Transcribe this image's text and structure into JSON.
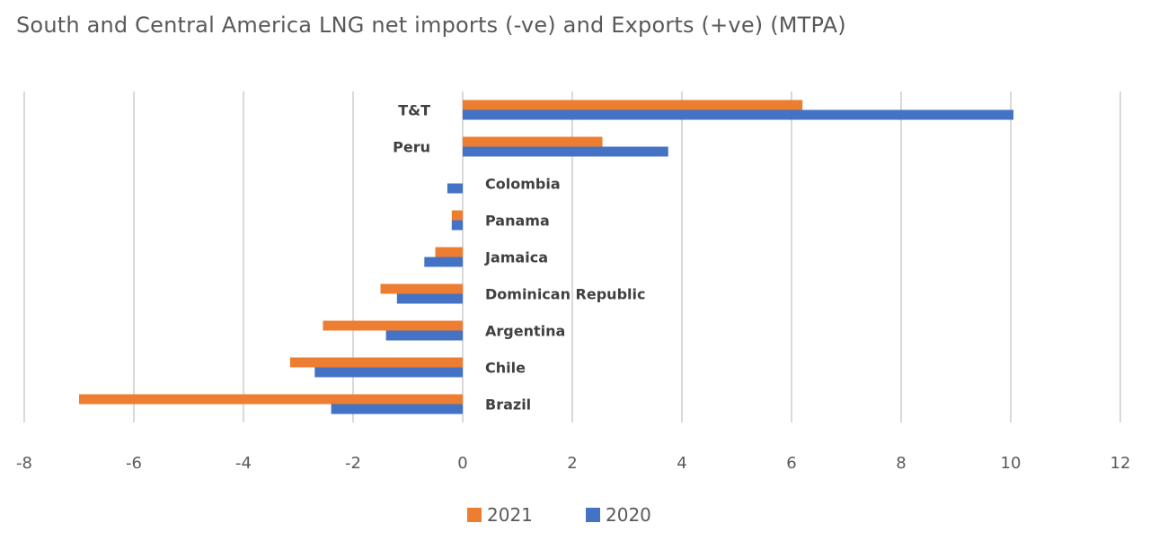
{
  "chart_data": {
    "type": "bar",
    "orientation": "horizontal",
    "title": "South and Central America LNG net imports (-ve) and Exports (+ve) (MTPA)",
    "xlim": [
      -8,
      12
    ],
    "xticks": [
      -8,
      -6,
      -4,
      -2,
      0,
      2,
      4,
      6,
      8,
      10,
      12
    ],
    "categories": [
      "T&T",
      "Peru",
      "Colombia",
      "Panama",
      "Jamaica",
      "Dominican Republic",
      "Argentina",
      "Chile",
      "Brazil"
    ],
    "series": [
      {
        "name": "2021",
        "color": "#ED7D31",
        "values": [
          6.2,
          2.55,
          0,
          -0.2,
          -0.5,
          -1.5,
          -2.55,
          -3.15,
          -7.0
        ]
      },
      {
        "name": "2020",
        "color": "#4472C4",
        "values": [
          10.05,
          3.75,
          -0.28,
          -0.2,
          -0.7,
          -1.2,
          -1.4,
          -2.7,
          -2.4
        ]
      }
    ],
    "grid": true,
    "legend": "bottom"
  }
}
